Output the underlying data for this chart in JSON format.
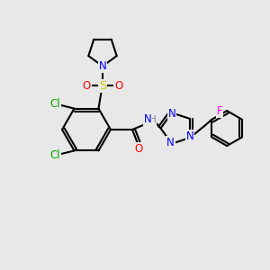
{
  "background_color": "#e8e8e8",
  "atom_colors": {
    "C": "#000000",
    "H": "#808080",
    "N": "#0000ff",
    "O": "#ff0000",
    "S": "#cccc00",
    "Cl": "#00aa00",
    "F": "#ff00ff"
  },
  "bond_color": "#000000",
  "bond_width": 1.5,
  "font_size": 8.5,
  "figsize": [
    3.0,
    3.0
  ],
  "dpi": 100
}
